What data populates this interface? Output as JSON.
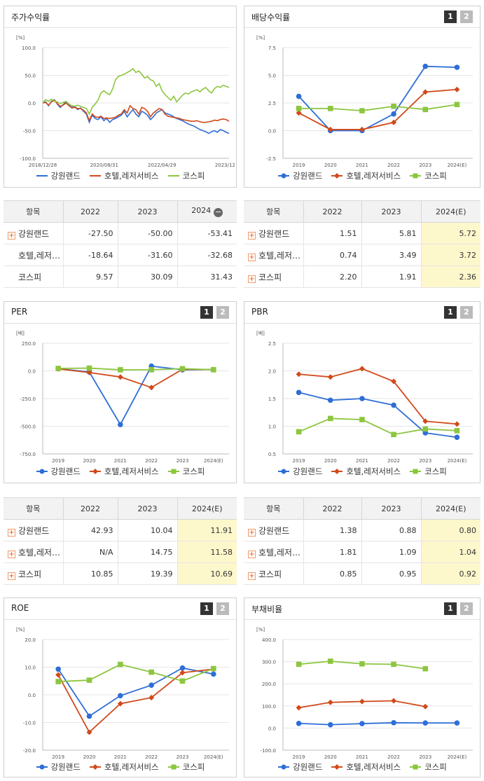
{
  "series_names": [
    "강원랜드",
    "호텔,레저서비스",
    "코스피"
  ],
  "colors": {
    "s0": "#2e6ed6",
    "s1": "#d14a1a",
    "s2": "#8cc63f"
  },
  "panels": {
    "stock": {
      "title": "주가수익률"
    },
    "dividend": {
      "title": "배당수익률",
      "btn1": "1",
      "btn2": "2"
    },
    "per": {
      "title": "PER",
      "btn1": "1",
      "btn2": "2"
    },
    "pbr": {
      "title": "PBR",
      "btn1": "1",
      "btn2": "2"
    },
    "roe": {
      "title": "ROE",
      "btn1": "1",
      "btn2": "2"
    },
    "debt": {
      "title": "부채비율",
      "btn1": "1",
      "btn2": "2"
    }
  },
  "tables": {
    "stock": {
      "headers": [
        "항목",
        "2022",
        "2023",
        "2024"
      ],
      "rows": [
        {
          "name": "강원랜드",
          "plus": true,
          "values": [
            "-27.50",
            "-50.00",
            "-53.41"
          ]
        },
        {
          "name": "호텔,레저…",
          "plus": false,
          "values": [
            "-18.64",
            "-31.60",
            "-32.68"
          ]
        },
        {
          "name": "코스피",
          "plus": false,
          "values": [
            "9.57",
            "30.09",
            "31.43"
          ]
        }
      ]
    },
    "dividend": {
      "headers": [
        "항목",
        "2022",
        "2023",
        "2024(E)"
      ],
      "rows": [
        {
          "name": "강원랜드",
          "plus": true,
          "values": [
            "1.51",
            "5.81",
            "5.72"
          ]
        },
        {
          "name": "호텔,레저…",
          "plus": true,
          "values": [
            "0.74",
            "3.49",
            "3.72"
          ]
        },
        {
          "name": "코스피",
          "plus": true,
          "values": [
            "2.20",
            "1.91",
            "2.36"
          ]
        }
      ]
    },
    "per": {
      "headers": [
        "항목",
        "2022",
        "2023",
        "2024(E)"
      ],
      "rows": [
        {
          "name": "강원랜드",
          "plus": true,
          "values": [
            "42.93",
            "10.04",
            "11.91"
          ]
        },
        {
          "name": "호텔,레저…",
          "plus": true,
          "values": [
            "N/A",
            "14.75",
            "11.58"
          ]
        },
        {
          "name": "코스피",
          "plus": true,
          "values": [
            "10.85",
            "19.39",
            "10.69"
          ]
        }
      ]
    },
    "pbr": {
      "headers": [
        "항목",
        "2022",
        "2023",
        "2024(E)"
      ],
      "rows": [
        {
          "name": "강원랜드",
          "plus": true,
          "values": [
            "1.38",
            "0.88",
            "0.80"
          ]
        },
        {
          "name": "호텔,레저…",
          "plus": true,
          "values": [
            "1.81",
            "1.09",
            "1.04"
          ]
        },
        {
          "name": "코스피",
          "plus": true,
          "values": [
            "0.85",
            "0.95",
            "0.92"
          ]
        }
      ]
    }
  },
  "chart_data": [
    {
      "id": "stock",
      "type": "line",
      "ylabel": "[%]",
      "ylim": [
        -100,
        100
      ],
      "yticks": [
        "100.0",
        "50.0",
        "0.0",
        "-50.0",
        "-100.0"
      ],
      "xticks": [
        "2018/12/28",
        "2020/08/31",
        "2022/04/29",
        "2023/12/28"
      ],
      "series": [
        {
          "name": "강원랜드",
          "values": [
            0,
            2,
            -5,
            3,
            6,
            -2,
            -8,
            -3,
            2,
            -4,
            -8,
            -6,
            -12,
            -9,
            -15,
            -20,
            -35,
            -22,
            -28,
            -30,
            -25,
            -32,
            -28,
            -35,
            -30,
            -28,
            -25,
            -22,
            -15,
            -25,
            -18,
            -12,
            -20,
            -25,
            -15,
            -18,
            -22,
            -30,
            -25,
            -18,
            -15,
            -12,
            -18,
            -20,
            -22,
            -25,
            -28,
            -30,
            -32,
            -35,
            -38,
            -40,
            -42,
            -45,
            -48,
            -50,
            -52,
            -55,
            -52,
            -50,
            -53,
            -48,
            -50,
            -53,
            -55
          ]
        },
        {
          "name": "호텔,레저서비스",
          "values": [
            0,
            1,
            -4,
            2,
            5,
            -1,
            -6,
            -4,
            0,
            -5,
            -9,
            -8,
            -10,
            -10,
            -13,
            -18,
            -32,
            -20,
            -25,
            -26,
            -24,
            -28,
            -27,
            -28,
            -27,
            -26,
            -22,
            -20,
            -12,
            -18,
            -5,
            -10,
            -12,
            -20,
            -8,
            -10,
            -15,
            -25,
            -18,
            -14,
            -10,
            -12,
            -20,
            -24,
            -25,
            -26,
            -27,
            -28,
            -30,
            -31,
            -32,
            -33,
            -33,
            -32,
            -34,
            -35,
            -35,
            -34,
            -33,
            -31,
            -32,
            -30,
            -29,
            -30,
            -33
          ]
        },
        {
          "name": "코스피",
          "values": [
            0,
            6,
            3,
            7,
            3,
            2,
            -1,
            1,
            3,
            -2,
            -5,
            -6,
            -4,
            -6,
            -8,
            -10,
            -20,
            -8,
            -2,
            5,
            18,
            22,
            18,
            15,
            25,
            42,
            48,
            50,
            52,
            55,
            58,
            62,
            55,
            58,
            52,
            45,
            48,
            42,
            40,
            30,
            35,
            22,
            15,
            10,
            5,
            12,
            2,
            8,
            14,
            18,
            16,
            20,
            22,
            24,
            20,
            25,
            28,
            22,
            18,
            26,
            30,
            28,
            32,
            30,
            28
          ]
        }
      ]
    },
    {
      "id": "dividend",
      "type": "line",
      "ylabel": "[%]",
      "ylim": [
        -2.5,
        7.5
      ],
      "yticks": [
        "7.5",
        "5.0",
        "2.5",
        "0.0",
        "-2.5"
      ],
      "categories": [
        "2019",
        "2020",
        "2021",
        "2022",
        "2023",
        "2024(E)"
      ],
      "series": [
        {
          "name": "강원랜드",
          "values": [
            3.1,
            0.0,
            0.0,
            1.51,
            5.81,
            5.72
          ]
        },
        {
          "name": "호텔,레저서비스",
          "values": [
            1.6,
            0.1,
            0.1,
            0.74,
            3.49,
            3.72
          ]
        },
        {
          "name": "코스피",
          "values": [
            2.0,
            2.0,
            1.8,
            2.2,
            1.91,
            2.36
          ]
        }
      ]
    },
    {
      "id": "per",
      "type": "line",
      "ylabel": "[배]",
      "ylim": [
        -750,
        250
      ],
      "yticks": [
        "250.0",
        "0.0",
        "-250.0",
        "-500.0",
        "-750.0"
      ],
      "categories": [
        "2019",
        "2020",
        "2021",
        "2022",
        "2023",
        "2024(E)"
      ],
      "series": [
        {
          "name": "강원랜드",
          "values": [
            20,
            -10,
            -485,
            42.93,
            10.04,
            11.91
          ]
        },
        {
          "name": "호텔,레저서비스",
          "values": [
            18,
            -15,
            -55,
            -150,
            14.75,
            11.58
          ]
        },
        {
          "name": "코스피",
          "values": [
            22,
            25,
            10,
            10.85,
            19.39,
            10.69
          ]
        }
      ]
    },
    {
      "id": "pbr",
      "type": "line",
      "ylabel": "[배]",
      "ylim": [
        0.5,
        2.5
      ],
      "yticks": [
        "2.5",
        "2.0",
        "1.5",
        "1.0",
        "0.5"
      ],
      "categories": [
        "2019",
        "2020",
        "2021",
        "2022",
        "2023",
        "2024(E)"
      ],
      "series": [
        {
          "name": "강원랜드",
          "values": [
            1.61,
            1.47,
            1.5,
            1.38,
            0.88,
            0.8
          ]
        },
        {
          "name": "호텔,레저서비스",
          "values": [
            1.94,
            1.89,
            2.04,
            1.81,
            1.09,
            1.04
          ]
        },
        {
          "name": "코스피",
          "values": [
            0.9,
            1.14,
            1.12,
            0.85,
            0.95,
            0.92
          ]
        }
      ]
    },
    {
      "id": "roe",
      "type": "line",
      "ylabel": "[%]",
      "ylim": [
        -20,
        20
      ],
      "yticks": [
        "20.0",
        "10.0",
        "0.0",
        "-10.0",
        "-20.0"
      ],
      "categories": [
        "2019",
        "2020",
        "2021",
        "2022",
        "2023",
        "2024(E)"
      ],
      "series": [
        {
          "name": "강원랜드",
          "values": [
            9.3,
            -7.7,
            -0.3,
            3.5,
            9.7,
            7.5
          ]
        },
        {
          "name": "호텔,레저서비스",
          "values": [
            7.2,
            -13.5,
            -3.2,
            -1.0,
            8.0,
            9.3
          ]
        },
        {
          "name": "코스피",
          "values": [
            4.8,
            5.3,
            11.0,
            8.2,
            5.0,
            9.5
          ]
        }
      ]
    },
    {
      "id": "debt",
      "type": "line",
      "ylabel": "[%]",
      "ylim": [
        -100,
        400
      ],
      "yticks": [
        "400.0",
        "300.0",
        "200.0",
        "100.0",
        "0.0",
        "-100.0"
      ],
      "categories": [
        "2019",
        "2020",
        "2021",
        "2022",
        "2023",
        "2024(E)"
      ],
      "series": [
        {
          "name": "강원랜드",
          "values": [
            21,
            15,
            20,
            24,
            23,
            23
          ]
        },
        {
          "name": "호텔,레저서비스",
          "values": [
            92,
            116,
            120,
            123,
            97,
            null
          ]
        },
        {
          "name": "코스피",
          "values": [
            288,
            302,
            290,
            288,
            268,
            null
          ]
        }
      ]
    }
  ]
}
